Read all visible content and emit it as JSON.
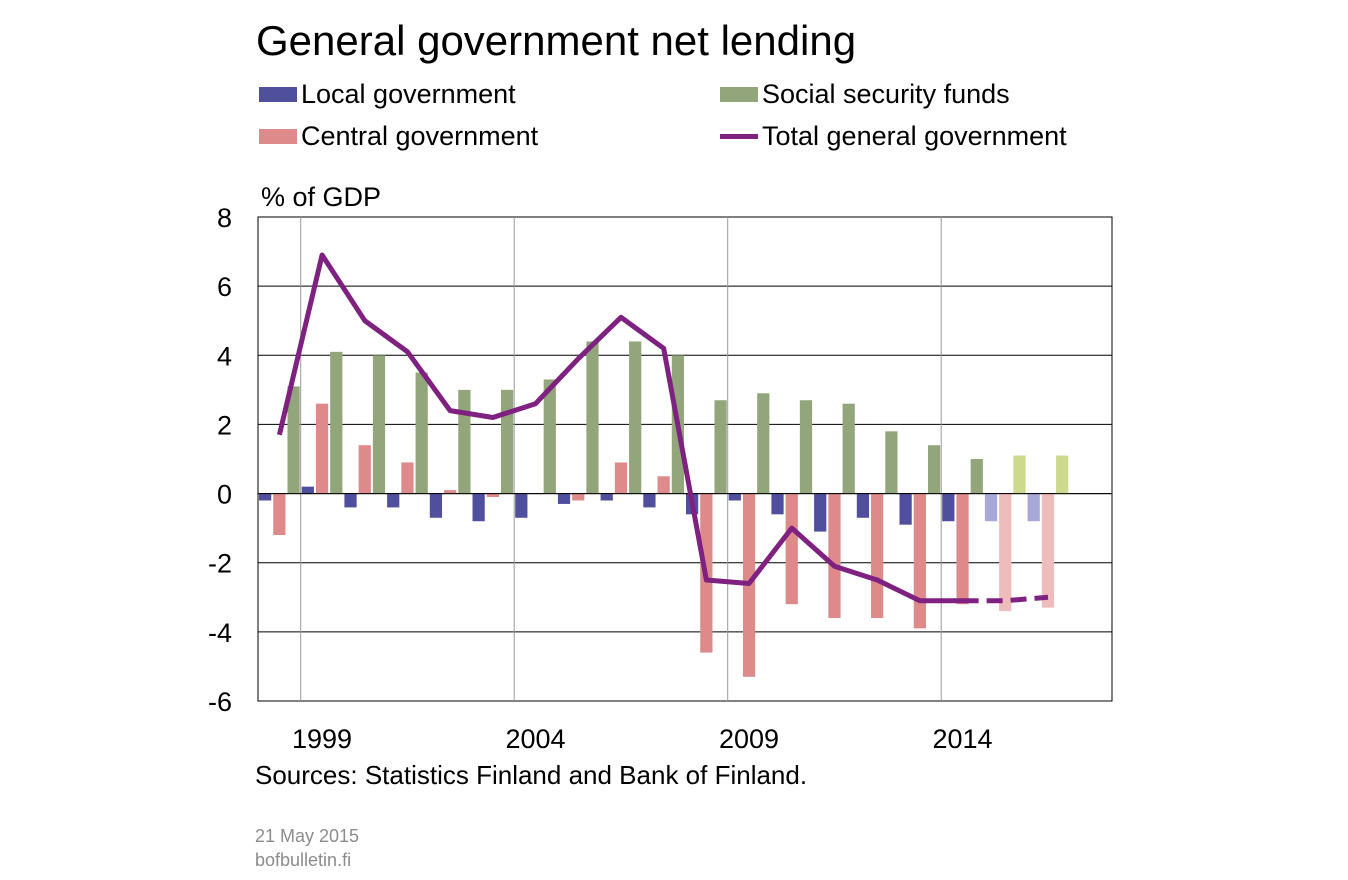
{
  "chart_data": {
    "type": "bar",
    "title": "General government net lending",
    "ylabel": "% of GDP",
    "xlabel": "",
    "ylim": [
      -6,
      8
    ],
    "yticks": [
      8,
      6,
      4,
      2,
      0,
      -2,
      -4,
      -6
    ],
    "xticks": [
      "1999",
      "2004",
      "2009",
      "2014"
    ],
    "grid": true,
    "legend_position": "top",
    "years": [
      1998,
      1999,
      2000,
      2001,
      2002,
      2003,
      2004,
      2005,
      2006,
      2007,
      2008,
      2009,
      2010,
      2011,
      2012,
      2013,
      2014,
      2015,
      2016,
      2017
    ],
    "forecast_from": 2015,
    "series": [
      {
        "name": "Local government",
        "kind": "bar",
        "color": "#4f4f9e",
        "forecast_color": "#a7a7d8",
        "values": [
          -0.2,
          0.2,
          -0.4,
          -0.4,
          -0.7,
          -0.8,
          -0.7,
          -0.3,
          -0.2,
          -0.4,
          -0.6,
          -0.2,
          -0.6,
          -1.1,
          -0.7,
          -0.9,
          -0.8,
          -0.8,
          -0.8,
          null
        ]
      },
      {
        "name": "Central government",
        "kind": "bar",
        "color": "#de8a8a",
        "forecast_color": "#efbcbc",
        "values": [
          -1.2,
          2.6,
          1.4,
          0.9,
          0.1,
          -0.1,
          0.0,
          -0.2,
          0.9,
          0.5,
          -4.6,
          -5.3,
          -3.2,
          -3.6,
          -3.6,
          -3.9,
          -3.2,
          -3.4,
          -3.3,
          null
        ]
      },
      {
        "name": "Social security funds",
        "kind": "bar",
        "color": "#93a67b",
        "forecast_color": "#cdd98d",
        "values": [
          3.1,
          4.1,
          4.0,
          3.5,
          3.0,
          3.0,
          3.3,
          4.4,
          4.4,
          4.0,
          2.7,
          2.9,
          2.7,
          2.6,
          1.8,
          1.4,
          1.0,
          1.1,
          1.1,
          null
        ]
      },
      {
        "name": "Total general government",
        "kind": "line",
        "color": "#7f2180",
        "values": [
          1.7,
          6.9,
          5.0,
          4.1,
          2.4,
          2.2,
          2.6,
          3.9,
          5.1,
          4.2,
          -2.5,
          -2.6,
          -1.0,
          -2.1,
          -2.5,
          -3.1,
          -3.1,
          -3.1,
          -3.0,
          null
        ]
      }
    ],
    "source_note": "Sources: Statistics Finland and Bank of Finland."
  },
  "footer": {
    "date": "21 May 2015",
    "site": "bofbulletin.fi"
  }
}
